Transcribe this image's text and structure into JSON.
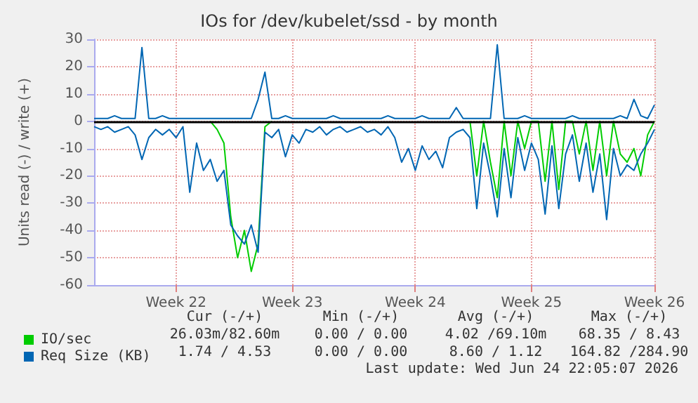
{
  "chart_data": {
    "type": "line",
    "title": "IOs for /dev/kubelet/ssd - by month",
    "ylabel": "Units read (-) / write (+)",
    "categories": [
      null,
      null,
      null,
      null,
      null,
      null,
      null,
      null,
      null,
      null,
      null,
      null,
      "Week 22",
      null,
      null,
      null,
      null,
      null,
      null,
      null,
      null,
      null,
      null,
      null,
      null,
      null,
      null,
      null,
      null,
      "Week 23",
      null,
      null,
      null,
      null,
      null,
      null,
      null,
      null,
      null,
      null,
      null,
      null,
      null,
      null,
      null,
      null,
      null,
      "Week 24",
      null,
      null,
      null,
      null,
      null,
      null,
      null,
      null,
      null,
      null,
      null,
      null,
      null,
      null,
      null,
      null,
      "Week 25",
      null,
      null,
      null,
      null,
      null,
      null,
      null,
      null,
      null,
      null,
      null,
      null,
      null,
      null,
      null,
      null,
      null,
      "Week 26"
    ],
    "series": [
      {
        "name": "IO/sec",
        "color": "#00cc00",
        "values": [
          null,
          null,
          null,
          null,
          null,
          null,
          null,
          null,
          null,
          null,
          null,
          null,
          null,
          null,
          null,
          null,
          null,
          0,
          -3,
          -8,
          -35,
          -50,
          -40,
          -55,
          -45,
          -2,
          0,
          null,
          null,
          null,
          null,
          null,
          null,
          null,
          null,
          null,
          null,
          null,
          null,
          null,
          null,
          null,
          null,
          null,
          null,
          null,
          null,
          null,
          null,
          null,
          null,
          null,
          null,
          null,
          null,
          0,
          -20,
          0,
          -15,
          -28,
          0,
          -20,
          0,
          -10,
          0,
          0,
          -22,
          0,
          -25,
          0,
          0,
          -12,
          0,
          -18,
          0,
          -20,
          0,
          -12,
          -15,
          -10,
          -20,
          -5,
          0
        ]
      },
      {
        "name": "Req Size (KB)",
        "color": "#0066b3",
        "values": [
          -2,
          -3,
          -2,
          -4,
          -3,
          -2,
          -5,
          -14,
          -6,
          -3,
          -5,
          -3,
          -6,
          -2,
          -26,
          -8,
          -18,
          -14,
          -22,
          -18,
          -38,
          -42,
          -45,
          -38,
          -48,
          -4,
          -6,
          -3,
          -13,
          -5,
          -8,
          -3,
          -4,
          -2,
          -5,
          -3,
          -2,
          -4,
          -3,
          -2,
          -4,
          -3,
          -5,
          -2,
          -6,
          -15,
          -10,
          -18,
          -9,
          -14,
          -11,
          -17,
          -6,
          -4,
          -3,
          -6,
          -32,
          -8,
          -20,
          -35,
          -10,
          -28,
          -6,
          -18,
          -8,
          -14,
          -34,
          -9,
          -32,
          -12,
          -5,
          -22,
          -8,
          -26,
          -12,
          -36,
          -10,
          -20,
          -16,
          -18,
          -12,
          -8,
          -3
        ]
      },
      {
        "color": "#0066b3",
        "values": [
          1,
          1,
          1,
          2,
          1,
          1,
          1,
          27,
          1,
          1,
          2,
          1,
          1,
          1,
          1,
          1,
          1,
          1,
          1,
          1,
          1,
          1,
          1,
          1,
          8,
          18,
          1,
          1,
          2,
          1,
          1,
          1,
          1,
          1,
          1,
          2,
          1,
          1,
          1,
          1,
          1,
          1,
          1,
          2,
          1,
          1,
          1,
          1,
          2,
          1,
          1,
          1,
          1,
          5,
          1,
          1,
          1,
          1,
          1,
          28,
          1,
          1,
          1,
          2,
          1,
          1,
          1,
          1,
          1,
          1,
          2,
          1,
          1,
          1,
          1,
          1,
          1,
          2,
          1,
          8,
          2,
          1,
          6
        ]
      }
    ],
    "ref_lines": [
      {
        "axis": "y",
        "value": 0,
        "color": "#000000"
      }
    ],
    "ylim": [
      -60,
      30
    ],
    "yticks": [
      -60,
      -50,
      -40,
      -30,
      -20,
      -10,
      0,
      10,
      20,
      30
    ],
    "grid": true,
    "legend": "bottom left",
    "marker": "none",
    "line_style": "solid",
    "annotations": [
      "Cur (-/+)",
      "Min (-/+)",
      "Avg (-/+)",
      "Max (-/+)",
      "26.03m/82.60m",
      "0.00 / 0.00",
      "4.02 /69.10m",
      "68.35 / 8.43",
      "1.74 / 4.53",
      "0.00 / 0.00",
      "8.60 / 1.12",
      "164.82 /284.90",
      "Last update: Wed Jun 24 22:05:07 2026"
    ]
  }
}
